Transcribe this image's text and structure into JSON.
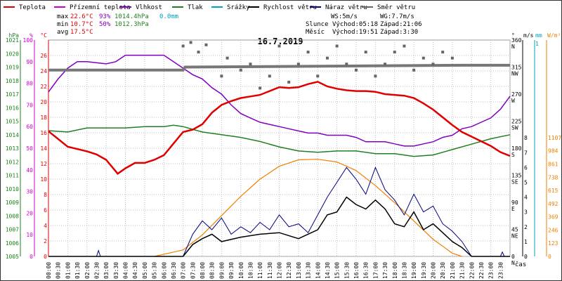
{
  "legend": [
    {
      "label": "Teplota",
      "color": "#e00000"
    },
    {
      "label": "Přízemní teplota",
      "color": "#cc00cc"
    },
    {
      "label": "Vlhkost",
      "color": "#8000c0"
    },
    {
      "label": "Tlak",
      "color": "#208020"
    },
    {
      "label": "Srážky",
      "color": "#00a0c0"
    },
    {
      "label": "Rychlost větru",
      "color": "#000000"
    },
    {
      "label": "Náraz větru",
      "color": "#000080"
    },
    {
      "label": "Směr větru",
      "color": "#666666"
    }
  ],
  "stats": {
    "max_label": "max",
    "max_temp": "22.6°C",
    "max_hum": "93%",
    "max_press": "1014.4hPa",
    "max_rain": "0.0mm",
    "min_label": "min",
    "min_temp": "10.7°C",
    "min_hum": "50%",
    "min_press": "1012.3hPa",
    "avg_label": "avg",
    "avg_temp": "17.5°C"
  },
  "wind_info": {
    "ws": "WS:5m/s",
    "wg": "WG:7.7m/s"
  },
  "sun_info": {
    "label": "Slunce",
    "rise": "Východ:05:18",
    "set": "Západ:21:06"
  },
  "moon_info": {
    "label": "Měsíc",
    "rise": "Východ:19:51",
    "set": "Západ:3:30"
  },
  "colors": {
    "temp": "#e00000",
    "humidity": "#8000c0",
    "pressure": "#208020",
    "wind_speed": "#000000",
    "wind_gust": "#000080",
    "wind_dir": "#666666",
    "sun": "#f08000",
    "rain": "#00a0c0",
    "grid": "#c0c0c0"
  },
  "chart_data": {
    "type": "line",
    "title": "16.7.2019",
    "x_unit_label": "čas",
    "x_ticks": [
      "00:00",
      "00:30",
      "01:00",
      "01:30",
      "02:00",
      "02:30",
      "03:00",
      "03:30",
      "04:00",
      "04:30",
      "05:00",
      "05:30",
      "06:00",
      "06:30",
      "07:00",
      "07:30",
      "08:00",
      "08:30",
      "09:00",
      "09:30",
      "10:00",
      "10:30",
      "11:00",
      "11:30",
      "12:00",
      "12:30",
      "13:00",
      "13:30",
      "14:00",
      "14:30",
      "15:00",
      "15:30",
      "16:00",
      "16:30",
      "17:00",
      "17:30",
      "18:00",
      "18:30",
      "19:00",
      "19:30",
      "20:00",
      "20:30",
      "21:00",
      "21:30",
      "22:00",
      "22:30",
      "23:00",
      "23:30"
    ],
    "axes": {
      "hpa": {
        "unit": "hPa",
        "ticks": [
          "1005",
          "1006",
          "1007",
          "1008",
          "1009",
          "1010",
          "1011",
          "1012",
          "1013",
          "1014",
          "1015",
          "1016",
          "1017",
          "1018",
          "1019",
          "1020",
          "1021"
        ]
      },
      "percent": {
        "unit": "%",
        "ticks": [
          "0",
          "10",
          "20",
          "30",
          "40",
          "50",
          "60",
          "70",
          "80",
          "90",
          "100"
        ]
      },
      "temp": {
        "unit": "°C",
        "ticks": [
          "0",
          "2",
          "4",
          "6",
          "8",
          "10",
          "12",
          "14",
          "16",
          "18",
          "20",
          "22",
          "24",
          "26"
        ]
      },
      "dir": {
        "unit": "°",
        "ticks": [
          "0",
          "45",
          "90",
          "135",
          "180",
          "225",
          "270",
          "315",
          "360"
        ],
        "labels": [
          "N",
          "NE",
          "E",
          "SE",
          "S",
          "SW",
          "W",
          "NW",
          "N"
        ]
      },
      "ms": {
        "unit": "m/s",
        "ticks": [
          "0",
          "1",
          "2",
          "3",
          "4",
          "5",
          "6",
          "7",
          "8"
        ]
      },
      "mm": {
        "unit": "mm",
        "top": "1"
      },
      "wm2": {
        "unit": "W/m²",
        "ticks": [
          "0",
          "123",
          "246",
          "369",
          "492",
          "615",
          "738",
          "861",
          "984",
          "1107"
        ]
      }
    },
    "series": {
      "temperature": {
        "unit": "°C",
        "x": [
          0,
          1,
          2,
          2.5,
          3,
          3.4,
          3.6,
          4,
          4.5,
          5,
          5.5,
          6,
          6.5,
          7,
          7.5,
          8,
          8.5,
          9,
          9.5,
          10,
          10.5,
          11,
          11.5,
          12,
          12.5,
          13,
          13.5,
          14,
          14.5,
          15,
          15.5,
          16,
          16.5,
          17,
          17.5,
          18,
          18.5,
          19,
          19.5,
          20,
          20.5,
          21,
          21.5,
          22,
          22.5,
          23,
          23.5,
          24
        ],
        "y": [
          16.2,
          14.2,
          13.6,
          13.2,
          12.5,
          11.3,
          10.7,
          11.4,
          12.1,
          12.1,
          12.5,
          13.1,
          14.6,
          16.1,
          16.4,
          17.1,
          18.6,
          19.6,
          20.1,
          20.5,
          20.7,
          20.9,
          21.4,
          21.9,
          21.8,
          21.9,
          22.3,
          22.6,
          22.0,
          21.7,
          21.5,
          21.4,
          21.4,
          21.3,
          21.0,
          20.9,
          20.8,
          20.5,
          19.8,
          19.0,
          18.0,
          17.0,
          16.1,
          15.5,
          14.9,
          14.3,
          13.5,
          13.0
        ]
      },
      "humidity": {
        "unit": "%",
        "x": [
          0,
          0.5,
          1,
          1.5,
          2,
          3,
          3.5,
          4,
          5,
          5.5,
          6,
          6.5,
          7,
          7.5,
          8,
          8.5,
          9,
          9.5,
          10,
          10.5,
          11,
          11.5,
          12,
          12.5,
          13,
          13.5,
          14,
          14.5,
          15,
          15.5,
          16,
          16.5,
          17,
          17.5,
          18,
          18.5,
          19,
          19.5,
          20,
          20.5,
          21,
          21.5,
          22,
          22.5,
          23,
          23.5,
          24
        ],
        "y": [
          76,
          82,
          87,
          90,
          90,
          89,
          90,
          93,
          93,
          93,
          93,
          90,
          87,
          84,
          82,
          78,
          75,
          70,
          66,
          64,
          62,
          61,
          60,
          59,
          58,
          57,
          57,
          56,
          56,
          56,
          55,
          53,
          53,
          53,
          52,
          51,
          51,
          52,
          53,
          55,
          56,
          59,
          60,
          62,
          64,
          68,
          74
        ]
      },
      "pressure": {
        "unit": "hPa",
        "x": [
          0,
          1,
          2,
          3,
          4,
          5,
          6,
          6.5,
          7,
          7.5,
          8,
          9,
          10,
          11,
          12,
          13,
          14,
          15,
          16,
          17,
          18,
          19,
          20,
          21,
          22,
          23,
          24
        ],
        "y": [
          1014.3,
          1014.2,
          1014.5,
          1014.5,
          1014.5,
          1014.6,
          1014.6,
          1014.7,
          1014.6,
          1014.4,
          1014.2,
          1014.0,
          1013.8,
          1013.5,
          1013.1,
          1012.8,
          1012.7,
          1012.8,
          1012.8,
          1012.6,
          1012.6,
          1012.4,
          1012.5,
          1012.9,
          1013.3,
          1013.7,
          1014.0
        ]
      },
      "wind_speed": {
        "unit": "m/s",
        "x": [
          0,
          7,
          7.5,
          8,
          8.5,
          9,
          10,
          11,
          12,
          13,
          14,
          14.5,
          15,
          15.5,
          16,
          16.5,
          17,
          17.5,
          18,
          18.5,
          19,
          19.5,
          20,
          20.5,
          21,
          21.5,
          22,
          24
        ],
        "y": [
          0,
          0,
          0.8,
          1.2,
          1.5,
          1.0,
          1.3,
          1.5,
          1.6,
          1.2,
          1.8,
          2.8,
          3.0,
          4.0,
          3.5,
          3.2,
          3.8,
          3.2,
          2.2,
          2.0,
          3.0,
          1.8,
          2.2,
          1.6,
          1.0,
          0.6,
          0,
          0
        ]
      },
      "wind_gust": {
        "unit": "m/s",
        "x": [
          0,
          2.5,
          2.6,
          2.7,
          7,
          7.5,
          8,
          8.5,
          9,
          9.5,
          10,
          10.5,
          11,
          11.5,
          12,
          12.5,
          13,
          13.5,
          14,
          14.5,
          15,
          15.5,
          16,
          16.5,
          17,
          17.5,
          18,
          18.5,
          19,
          19.5,
          20,
          20.5,
          21,
          21.5,
          22,
          23.5,
          23.6,
          23.7,
          24
        ],
        "y": [
          0,
          0,
          0.4,
          0,
          0,
          1.5,
          2.4,
          1.8,
          2.6,
          1.5,
          2.0,
          1.6,
          2.3,
          1.8,
          2.8,
          2.0,
          2.2,
          1.6,
          2.8,
          4.0,
          5.0,
          6.0,
          5.2,
          4.2,
          6.0,
          4.5,
          3.8,
          2.8,
          4.2,
          3.0,
          3.4,
          2.2,
          1.7,
          1.0,
          0,
          0,
          0.3,
          0,
          0
        ]
      },
      "wind_direction": {
        "unit": "°",
        "x": [
          7,
          7.4,
          7.8,
          8.2,
          9,
          9.3,
          10,
          10.5,
          11,
          11.5,
          12,
          12.5,
          13,
          13.5,
          14,
          14.5,
          15,
          15.5,
          16,
          16.5,
          17,
          17.5,
          18,
          18.5,
          19,
          19.5,
          20,
          20.5,
          21
        ],
        "y": [
          350,
          356,
          340,
          352,
          300,
          330,
          310,
          320,
          280,
          300,
          350,
          290,
          320,
          340,
          300,
          330,
          350,
          320,
          310,
          340,
          300,
          320,
          340,
          350,
          310,
          330,
          320,
          340,
          330
        ]
      },
      "wind_direction_avg": {
        "unit": "°",
        "x": [
          0,
          7,
          7.1,
          21.5,
          24
        ],
        "y": [
          310,
          310,
          315,
          318,
          318
        ]
      },
      "solar_radiation": {
        "unit": "W/m²",
        "x": [
          5.5,
          7,
          8,
          9,
          10,
          11,
          12,
          13,
          14,
          15,
          16,
          17,
          18,
          19,
          20,
          21,
          21.5
        ],
        "y": [
          0,
          60,
          200,
          380,
          560,
          720,
          840,
          900,
          905,
          880,
          800,
          660,
          500,
          330,
          160,
          30,
          0
        ]
      }
    },
    "yranges": {
      "temp": [
        0,
        28
      ],
      "percent": [
        0,
        100
      ],
      "pressure": [
        1005,
        1021
      ],
      "ms": [
        0,
        8
      ],
      "dir": [
        0,
        360
      ],
      "wm2": [
        0,
        1107
      ]
    }
  }
}
